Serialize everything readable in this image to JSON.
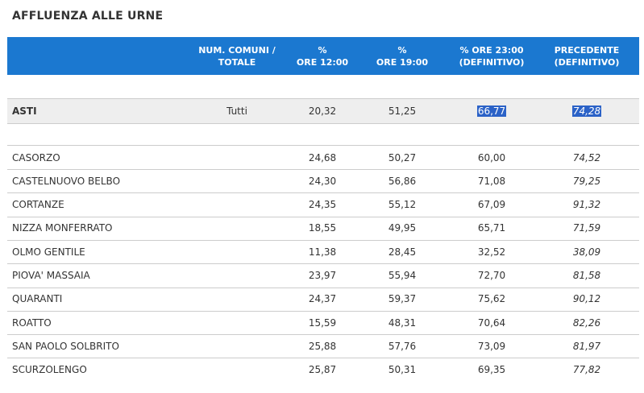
{
  "title": "AFFLUENZA ALLE URNE",
  "headers": {
    "comuni": "NUM. COMUNI /\nTOTALE",
    "ore12": "%\nORE 12:00",
    "ore19": "%\nORE 19:00",
    "ore23": "% ORE 23:00\n(DEFINITIVO)",
    "precedente": "PRECEDENTE\n(DEFINITIVO)"
  },
  "summary": {
    "name": "ASTI",
    "comuni": "Tutti",
    "ore12": "20,32",
    "ore19": "51,25",
    "ore23": "66,77",
    "precedente": "74,28"
  },
  "rows": [
    {
      "name": "CASORZO",
      "ore12": "24,68",
      "ore19": "50,27",
      "ore23": "60,00",
      "precedente": "74,52"
    },
    {
      "name": "CASTELNUOVO BELBO",
      "ore12": "24,30",
      "ore19": "56,86",
      "ore23": "71,08",
      "precedente": "79,25"
    },
    {
      "name": "CORTANZE",
      "ore12": "24,35",
      "ore19": "55,12",
      "ore23": "67,09",
      "precedente": "91,32"
    },
    {
      "name": "NIZZA MONFERRATO",
      "ore12": "18,55",
      "ore19": "49,95",
      "ore23": "65,71",
      "precedente": "71,59"
    },
    {
      "name": "OLMO GENTILE",
      "ore12": "11,38",
      "ore19": "28,45",
      "ore23": "32,52",
      "precedente": "38,09"
    },
    {
      "name": "PIOVA' MASSAIA",
      "ore12": "23,97",
      "ore19": "55,94",
      "ore23": "72,70",
      "precedente": "81,58"
    },
    {
      "name": "QUARANTI",
      "ore12": "24,37",
      "ore19": "59,37",
      "ore23": "75,62",
      "precedente": "90,12"
    },
    {
      "name": "ROATTO",
      "ore12": "15,59",
      "ore19": "48,31",
      "ore23": "70,64",
      "precedente": "82,26"
    },
    {
      "name": "SAN PAOLO SOLBRITO",
      "ore12": "25,88",
      "ore19": "57,76",
      "ore23": "73,09",
      "precedente": "81,97"
    },
    {
      "name": "SCURZOLENGO",
      "ore12": "25,87",
      "ore19": "50,31",
      "ore23": "69,35",
      "precedente": "77,82"
    }
  ]
}
